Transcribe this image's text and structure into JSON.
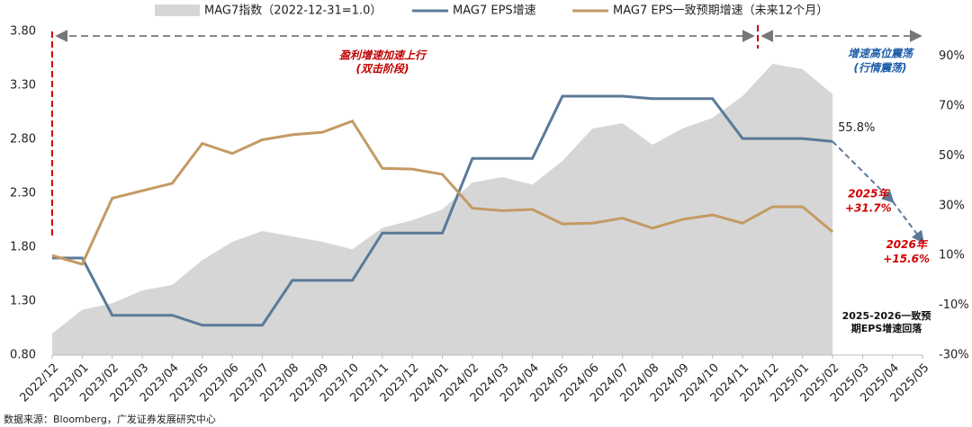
{
  "chart_data": {
    "type": "line",
    "categories": [
      "2022/12",
      "2023/01",
      "2023/02",
      "2023/03",
      "2023/04",
      "2023/05",
      "2023/06",
      "2023/07",
      "2023/08",
      "2023/09",
      "2023/10",
      "2023/11",
      "2023/12",
      "2024/01",
      "2024/02",
      "2024/03",
      "2024/04",
      "2024/05",
      "2024/06",
      "2024/07",
      "2024/08",
      "2024/09",
      "2024/10",
      "2024/11",
      "2024/12",
      "2025/01",
      "2025/02",
      "2025/03",
      "2025/04",
      "2025/05"
    ],
    "series": [
      {
        "name": "MAG7指数（2022-12-31=1.0）",
        "type": "area",
        "color": "#d6d6d6",
        "axis": "y",
        "values": [
          1.0,
          1.22,
          1.28,
          1.4,
          1.45,
          1.68,
          1.85,
          1.95,
          1.9,
          1.85,
          1.78,
          1.98,
          2.05,
          2.15,
          2.4,
          2.45,
          2.38,
          2.6,
          2.9,
          2.95,
          2.75,
          2.9,
          3.0,
          3.2,
          3.5,
          3.45,
          3.22,
          null,
          null,
          null
        ]
      },
      {
        "name": "MAG7 EPS增速",
        "type": "line",
        "color": "#5b7a98",
        "axis": "y2",
        "values": [
          9,
          9,
          -14,
          -14,
          -14,
          -18,
          -18,
          -18,
          0,
          0,
          0,
          19,
          19,
          19,
          49,
          49,
          49,
          74,
          74,
          74,
          73,
          73,
          73,
          57,
          57,
          57,
          55.8,
          null,
          null,
          null
        ],
        "value_labels": [
          null,
          null,
          null,
          null,
          null,
          null,
          null,
          null,
          null,
          null,
          null,
          null,
          null,
          null,
          null,
          null,
          null,
          null,
          null,
          null,
          null,
          null,
          null,
          null,
          null,
          null,
          "55.8%",
          null,
          null,
          null
        ]
      },
      {
        "name": "MAG7 EPS一致预期增速（未来12个月）",
        "type": "line",
        "color": "#c49a64",
        "axis": "y2",
        "values": [
          10,
          6.5,
          33,
          36,
          39,
          55,
          51,
          56.5,
          58.5,
          59.5,
          64,
          45,
          44.7,
          42.6,
          29,
          28,
          28.5,
          22.7,
          23,
          25,
          21,
          24.5,
          26.3,
          23,
          29.6,
          29.6,
          19.5,
          null,
          null,
          null
        ]
      }
    ],
    "projection": {
      "x": [
        "2025/04",
        "2025/05"
      ],
      "values": [
        31.7,
        15.6
      ],
      "value_labels": [
        "+31.7%",
        "+15.6%"
      ],
      "labels": [
        "2025年",
        "2026年"
      ],
      "color": "#5b7a98"
    },
    "ylim": [
      0.8,
      3.8
    ],
    "yticks": [
      {
        "value": 0.8,
        "label": "0.80"
      },
      {
        "value": 1.3,
        "label": "1.30"
      },
      {
        "value": 1.8,
        "label": "1.80"
      },
      {
        "value": 2.3,
        "label": "2.30"
      },
      {
        "value": 2.8,
        "label": "2.80"
      },
      {
        "value": 3.3,
        "label": "3.30"
      },
      {
        "value": 3.8,
        "label": "3.80"
      }
    ],
    "y2lim": [
      -30,
      100
    ],
    "y2ticks": [
      {
        "value": -30,
        "label": "-30%"
      },
      {
        "value": -10,
        "label": "-10%"
      },
      {
        "value": 10,
        "label": "10%"
      },
      {
        "value": 30,
        "label": "30%"
      },
      {
        "value": 50,
        "label": "50%"
      },
      {
        "value": 70,
        "label": "70%"
      },
      {
        "value": 90,
        "label": "90%"
      }
    ],
    "annotations": [
      "盈利增速加速上行",
      "(双击阶段)",
      "增速高位震荡",
      "(行情震荡)",
      "2025-2026一致预",
      "期EPS增速回落"
    ],
    "source": "数据来源：Bloomberg，广发证券发展研究中心"
  }
}
